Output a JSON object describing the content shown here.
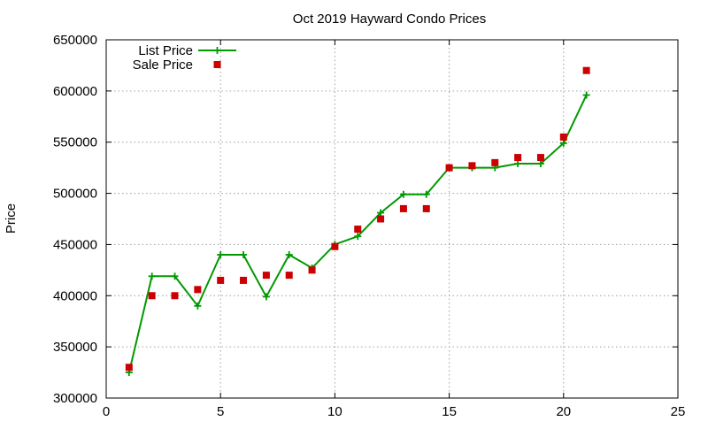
{
  "chart_data": {
    "type": "line",
    "title": "Oct 2019 Hayward Condo Prices",
    "xlabel": "",
    "ylabel": "Price",
    "xlim": [
      0,
      25
    ],
    "ylim": [
      300000,
      650000
    ],
    "xticks": [
      "0",
      "5",
      "10",
      "15",
      "20",
      "25"
    ],
    "yticks": [
      "300000",
      "350000",
      "400000",
      "450000",
      "500000",
      "550000",
      "600000",
      "650000"
    ],
    "grid": true,
    "legend_position": "top-left",
    "series": [
      {
        "name": "List Price",
        "style": "lines+plus-points",
        "color": "#009900",
        "x": [
          1,
          2,
          3,
          4,
          5,
          6,
          7,
          8,
          9,
          10,
          11,
          12,
          13,
          14,
          15,
          16,
          17,
          18,
          19,
          20,
          21
        ],
        "y": [
          325000,
          419000,
          419000,
          390000,
          440000,
          440000,
          399000,
          440000,
          427000,
          450000,
          458000,
          481000,
          499000,
          499000,
          525000,
          525000,
          525000,
          529000,
          529000,
          549000,
          596000
        ]
      },
      {
        "name": "Sale Price",
        "style": "square-points",
        "color": "#cc0000",
        "x": [
          1,
          2,
          3,
          4,
          5,
          6,
          7,
          8,
          9,
          10,
          11,
          12,
          13,
          14,
          15,
          16,
          17,
          18,
          19,
          20,
          21
        ],
        "y": [
          330000,
          400000,
          400000,
          406000,
          415000,
          415000,
          420000,
          420000,
          425000,
          448000,
          465000,
          475000,
          485000,
          485000,
          525000,
          527000,
          530000,
          535000,
          535000,
          555000,
          620000
        ]
      }
    ]
  }
}
